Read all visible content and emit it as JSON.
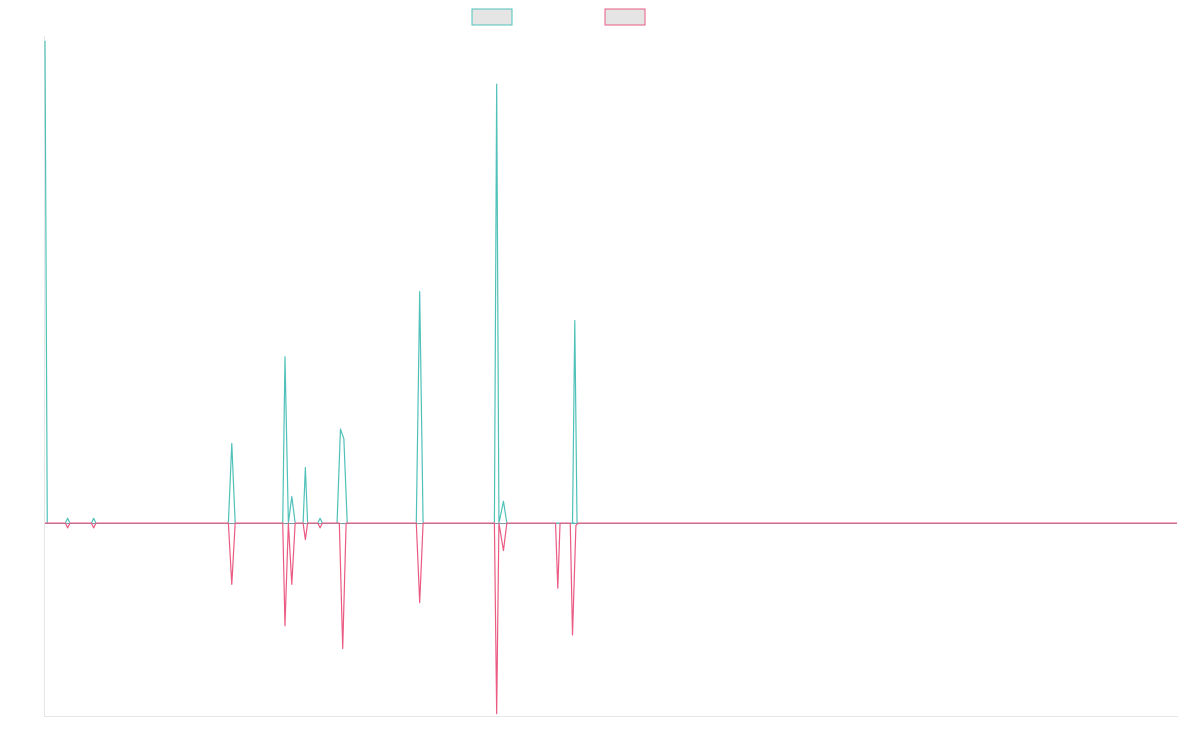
{
  "colors": {
    "series_a": "#4fc1b9",
    "series_b": "#ea5a83",
    "legend_fill": "#e5e5e5",
    "zero_line": "#7a9aa8"
  },
  "chart_data": {
    "type": "line",
    "title": "",
    "xlabel": "",
    "ylabel": "",
    "legend_position": "top-center",
    "grid": false,
    "xlim": [
      0,
      100
    ],
    "ylim": [
      -0.4,
      1.01
    ],
    "series": [
      {
        "color": "series_a",
        "points": [
          [
            0.0,
            1.0
          ],
          [
            0.2,
            0.0
          ],
          [
            1.8,
            0.0
          ],
          [
            2.0,
            0.01
          ],
          [
            2.2,
            0.0
          ],
          [
            4.1,
            0.0
          ],
          [
            4.3,
            0.01
          ],
          [
            4.5,
            0.0
          ],
          [
            16.2,
            0.0
          ],
          [
            16.5,
            0.165
          ],
          [
            16.8,
            0.0
          ],
          [
            21.0,
            0.0
          ],
          [
            21.2,
            0.345
          ],
          [
            21.5,
            0.0
          ],
          [
            21.8,
            0.055
          ],
          [
            22.1,
            0.0
          ],
          [
            22.8,
            0.0
          ],
          [
            23.0,
            0.115
          ],
          [
            23.2,
            0.0
          ],
          [
            24.1,
            0.0
          ],
          [
            24.3,
            0.01
          ],
          [
            24.5,
            0.0
          ],
          [
            25.8,
            0.0
          ],
          [
            26.1,
            0.195
          ],
          [
            26.4,
            0.175
          ],
          [
            26.7,
            0.0
          ],
          [
            32.8,
            0.0
          ],
          [
            33.1,
            0.48
          ],
          [
            33.4,
            0.0
          ],
          [
            39.7,
            0.0
          ],
          [
            39.9,
            0.91
          ],
          [
            40.1,
            0.0
          ],
          [
            40.5,
            0.045
          ],
          [
            40.8,
            0.0
          ],
          [
            46.4,
            0.0
          ],
          [
            46.6,
            0.0
          ],
          [
            46.8,
            0.0
          ],
          [
            46.6,
            0.0
          ],
          [
            46.8,
            0.42
          ],
          [
            47.0,
            0.0
          ],
          [
            100.0,
            0.0
          ]
        ]
      },
      {
        "color": "series_b",
        "points": [
          [
            0.0,
            0.0
          ],
          [
            1.8,
            0.0
          ],
          [
            2.0,
            -0.01
          ],
          [
            2.2,
            0.0
          ],
          [
            4.1,
            0.0
          ],
          [
            4.3,
            -0.01
          ],
          [
            4.5,
            0.0
          ],
          [
            16.2,
            0.0
          ],
          [
            16.5,
            -0.127
          ],
          [
            16.8,
            0.0
          ],
          [
            21.0,
            0.0
          ],
          [
            21.2,
            -0.213
          ],
          [
            21.5,
            0.0
          ],
          [
            21.8,
            -0.127
          ],
          [
            22.1,
            0.0
          ],
          [
            22.8,
            0.0
          ],
          [
            23.0,
            -0.034
          ],
          [
            23.2,
            0.0
          ],
          [
            24.1,
            0.0
          ],
          [
            24.3,
            -0.01
          ],
          [
            24.5,
            0.0
          ],
          [
            26.0,
            0.0
          ],
          [
            26.3,
            -0.26
          ],
          [
            26.6,
            0.0
          ],
          [
            32.8,
            0.0
          ],
          [
            33.1,
            -0.165
          ],
          [
            33.4,
            0.0
          ],
          [
            39.7,
            0.0
          ],
          [
            39.9,
            -0.395
          ],
          [
            40.1,
            0.0
          ],
          [
            40.5,
            -0.057
          ],
          [
            40.8,
            0.0
          ],
          [
            45.1,
            0.0
          ],
          [
            45.3,
            -0.135
          ],
          [
            45.5,
            0.0
          ],
          [
            46.4,
            0.0
          ],
          [
            46.6,
            -0.232
          ],
          [
            46.9,
            -0.005
          ],
          [
            47.1,
            0.0
          ],
          [
            100.0,
            0.0
          ]
        ]
      }
    ]
  }
}
